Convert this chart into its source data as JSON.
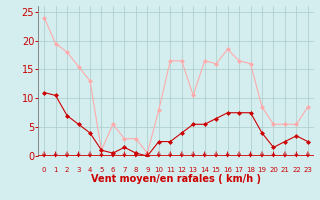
{
  "hours": [
    0,
    1,
    2,
    3,
    4,
    5,
    6,
    7,
    8,
    9,
    10,
    11,
    12,
    13,
    14,
    15,
    16,
    17,
    18,
    19,
    20,
    21,
    22,
    23
  ],
  "vent_moyen": [
    11,
    10.5,
    7,
    5.5,
    4,
    1,
    0.5,
    1.5,
    0.5,
    0,
    2.5,
    2.5,
    4,
    5.5,
    5.5,
    6.5,
    7.5,
    7.5,
    7.5,
    4,
    1.5,
    2.5,
    3.5,
    2.5
  ],
  "rafales": [
    24,
    19.5,
    18,
    15.5,
    13,
    1,
    5.5,
    3,
    3,
    0.5,
    8,
    16.5,
    16.5,
    10.5,
    16.5,
    16,
    18.5,
    16.5,
    16,
    8.5,
    5.5,
    5.5,
    5.5,
    8.5
  ],
  "vent_color": "#cc0000",
  "rafales_color": "#ffaaaa",
  "bg_color": "#d4eef0",
  "grid_color": "#aacccc",
  "xlabel": "Vent moyen/en rafales ( km/h )",
  "xlabel_color": "#cc0000",
  "tick_color": "#cc0000",
  "ylim": [
    0,
    26
  ],
  "yticks": [
    0,
    5,
    10,
    15,
    20,
    25
  ],
  "axis_fontsize": 7
}
